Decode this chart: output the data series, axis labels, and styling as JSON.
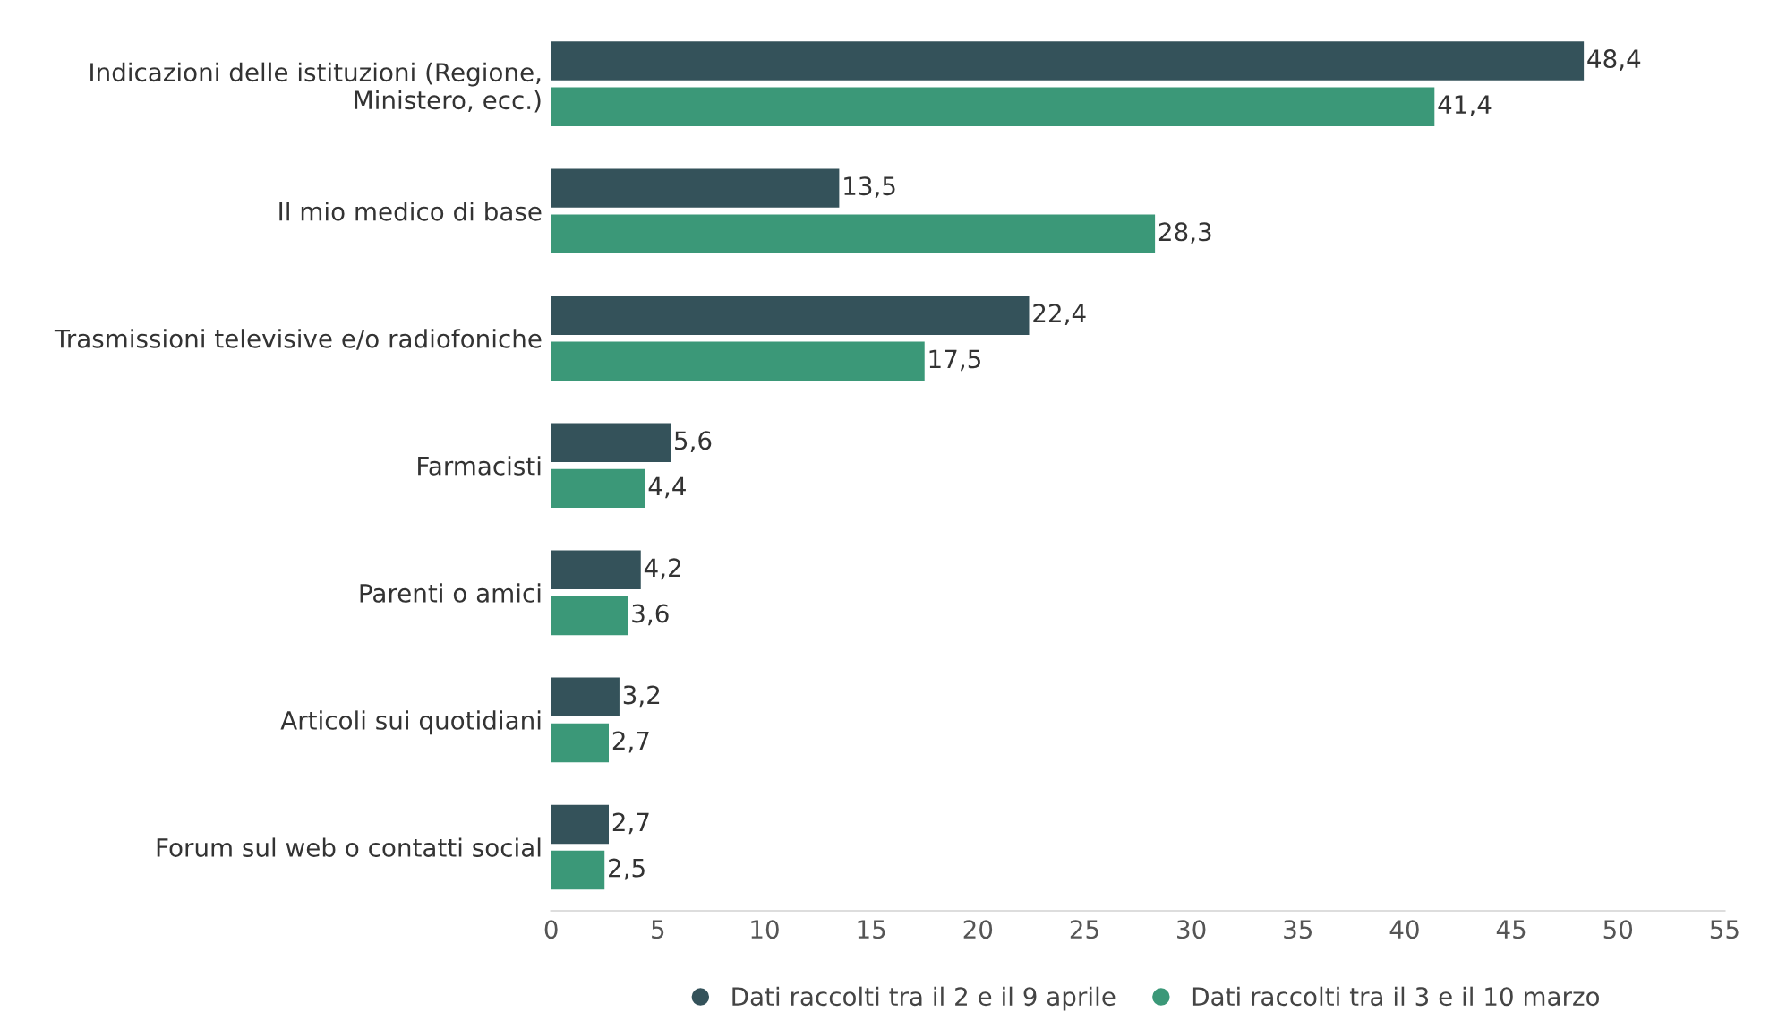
{
  "chart_data": {
    "type": "bar",
    "orientation": "horizontal",
    "categories": [
      "Indicazioni delle istituzioni (Regione,\nMinistero, ecc.)",
      "Il mio medico di base",
      "Trasmissioni televisive e/o radiofoniche",
      "Farmacisti",
      "Parenti o amici",
      "Articoli sui quotidiani",
      "Forum sul web o contatti social"
    ],
    "series": [
      {
        "name": "Dati raccolti tra il 2 e il 9 aprile",
        "color": "#34525a",
        "values": [
          48.4,
          13.5,
          22.4,
          5.6,
          4.2,
          3.2,
          2.7
        ],
        "value_labels": [
          "48,4",
          "13,5",
          "22,4",
          "5,6",
          "4,2",
          "3,2",
          "2,7"
        ]
      },
      {
        "name": "Dati raccolti tra il 3 e il 10 marzo",
        "color": "#3b9878",
        "values": [
          41.4,
          28.3,
          17.5,
          4.4,
          3.6,
          2.7,
          2.5
        ],
        "value_labels": [
          "41,4",
          "28,3",
          "17,5",
          "4,4",
          "3,6",
          "2,7",
          "2,5"
        ]
      }
    ],
    "xlim": [
      0,
      55
    ],
    "xticks": [
      0,
      5,
      10,
      15,
      20,
      25,
      30,
      35,
      40,
      45,
      50,
      55
    ],
    "grid": false,
    "legend": "bottom"
  }
}
